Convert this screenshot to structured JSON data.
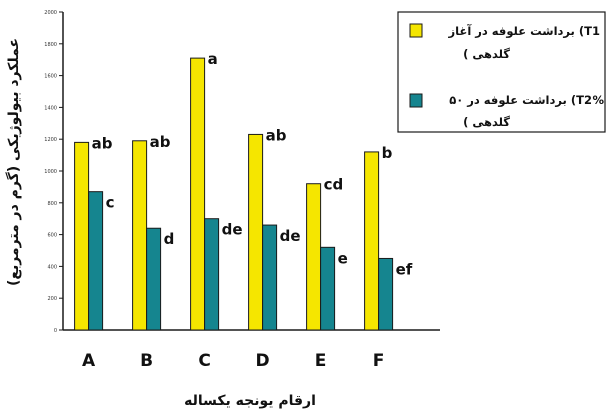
{
  "chart_data": {
    "type": "bar",
    "title": "",
    "xlabel": "ارقام یونجه یکساله",
    "ylabel": "عملکرد بیولوژیکی (گرم در مترمربع)",
    "categories": [
      "A",
      "B",
      "C",
      "D",
      "E",
      "F"
    ],
    "ylim": [
      0,
      2000
    ],
    "y_ticks": [
      0,
      200,
      400,
      600,
      800,
      1000,
      1200,
      1400,
      1600,
      1800,
      2000
    ],
    "y_tick_labels": [
      "0",
      "200",
      "400",
      "600",
      "800",
      "1000",
      "1200",
      "1400",
      "1600",
      "1800",
      "2000"
    ],
    "series": [
      {
        "name": "برداشت علوفه در آغاز (T1 گلدهی)",
        "color": "#f5e600",
        "values": [
          1180,
          1190,
          1710,
          1230,
          920,
          1120
        ],
        "labels": [
          "ab",
          "ab",
          "a",
          "ab",
          "cd",
          "b"
        ]
      },
      {
        "name": "برداشت علوفه در ۵۰% (T2 گلدهی)",
        "color": "#15858f",
        "values": [
          870,
          640,
          700,
          660,
          520,
          450
        ],
        "labels": [
          "c",
          "d",
          "de",
          "de",
          "e",
          "ef"
        ]
      }
    ],
    "grid": false,
    "legend_position": "top-right"
  },
  "legend": {
    "t1_line1": "برداشت علوفه در آغاز (T1",
    "t1_line2": "( گلدهی",
    "t2_line1": "برداشت علوفه در ۵۰ (T2",
    "t2_line2": "( گلدهی",
    "t2_percent": "%"
  }
}
